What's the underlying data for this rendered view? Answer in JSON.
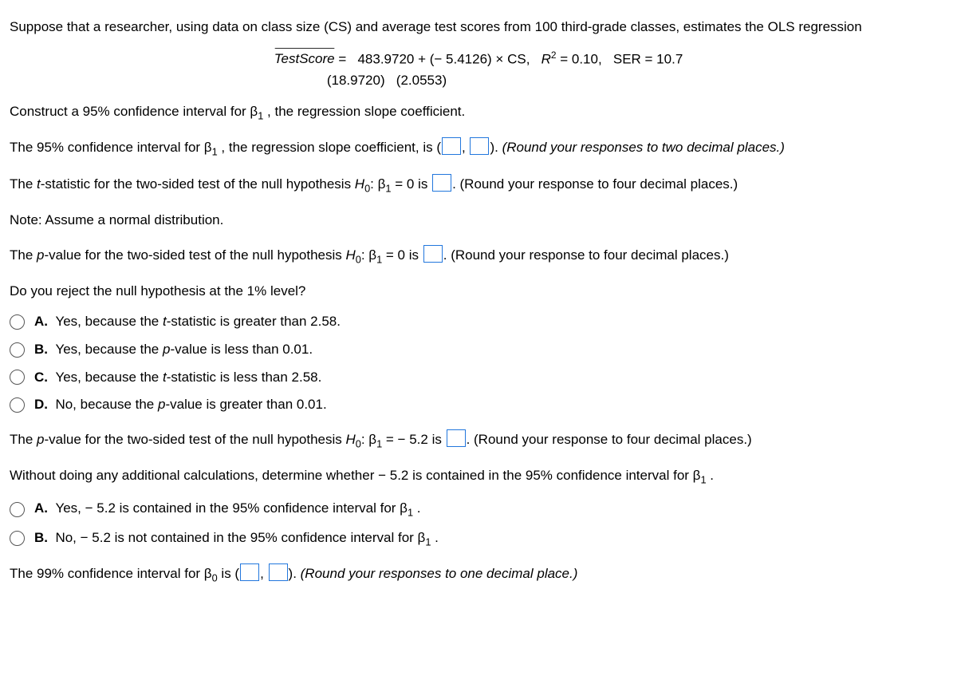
{
  "intro": "Suppose that a researcher, using data on class size (CS) and average test scores from 100 third-grade classes, estimates the OLS regression",
  "eq": {
    "lhs_hat": "TestScore",
    "rhs": "=   483.9720 + (− 5.4126) × CS,   ",
    "r2_label": "R",
    "r2_val": " = 0.10,   SER = 10.7",
    "se_line": "(18.9720)   (2.0553)"
  },
  "q1": "Construct a 95% confidence interval for β",
  "q1b": " , the regression slope coefficient.",
  "ci95_a": "The 95% confidence interval for β",
  "ci95_b": " , the regression slope coefficient, is (",
  "ci95_c": "). ",
  "ci95_hint": "(Round your responses to two decimal places.)",
  "tstat_a": "The ",
  "tstat_b": "-statistic for the two-sided test of the null hypothesis ",
  "h0": "H",
  "beta1": ": β",
  "tstat_c": " = 0 is ",
  "tstat_hint": ". (Round your response to four decimal places.)",
  "note": "Note: Assume a normal distribution.",
  "pval_a": "The ",
  "pval_b": "-value for the two-sided test of the null hypothesis ",
  "pval_c": " = 0 is ",
  "pval_hint": ". (Round your response to four decimal places.)",
  "reject_q": "Do you reject the null hypothesis at the 1% level?",
  "optA_label": "A.",
  "optA": "Yes, because the ",
  "optA2": "-statistic is greater than 2.58.",
  "optB_label": "B.",
  "optB": "Yes, because the ",
  "optB2": "-value is less than 0.01.",
  "optC_label": "C.",
  "optC": "Yes, because the ",
  "optC2": "-statistic is less than 2.58.",
  "optD_label": "D.",
  "optD": "No, because the ",
  "optD2": "-value is greater than 0.01.",
  "pval52_a": "The ",
  "pval52_b": "-value for the two-sided test of the null hypothesis ",
  "pval52_c": " = − 5.2 is ",
  "pval52_hint": ". (Round your response to four decimal places.)",
  "without": "Without doing any additional calculations, determine whether − 5.2 is contained in the 95% confidence interval for β",
  "opt2A_label": "A.",
  "opt2A": "Yes, − 5.2 is contained in the 95% confidence interval for β",
  "opt2B_label": "B.",
  "opt2B": "No, − 5.2 is not contained in the 95% confidence interval for β",
  "ci99_a": "The 99% confidence interval for β",
  "ci99_b": " is (",
  "ci99_c": "). ",
  "ci99_hint": "(Round your responses to one decimal place.)",
  "comma": ", ",
  "period": " .",
  "t_letter": "t",
  "p_letter": "p",
  "sub0": "0",
  "sub1": "1"
}
